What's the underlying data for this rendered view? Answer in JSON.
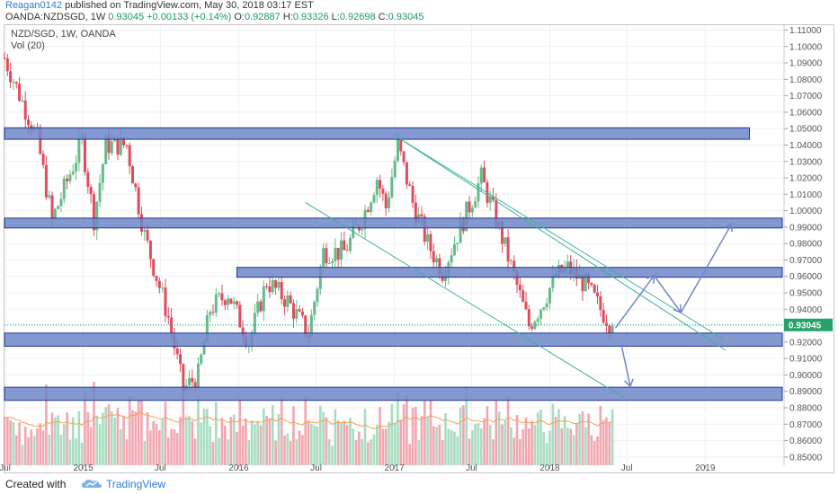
{
  "header": {
    "author": "Reagan0142",
    "published_text": " published on TradingView.com, May 30, 2018 03:17 EST",
    "symbol_line": "OANDA:NZDSGD, 1W",
    "last": "0.93045",
    "change": "+0.00133 (+0.14%)",
    "o_label": "O:",
    "o_value": "0.92887",
    "h_label": "H:",
    "h_value": "0.93326",
    "l_label": "L:",
    "l_value": "0.92698",
    "c_label": "C:",
    "c_value": "0.93045"
  },
  "legend": {
    "title": "NZD/SGD, 1W, OANDA",
    "vol": "Vol (20)"
  },
  "footer": {
    "created_with": "Created with",
    "brand": "TradingView"
  },
  "colors": {
    "up": "#66bb88",
    "down": "#e04c5f",
    "vol_up": "#a8dcc0",
    "vol_down": "#f2a6b0",
    "zone_fill": "#6f86c9",
    "zone_stroke": "#1e3a8a",
    "channel": "#3fb39a",
    "arrow": "#6f86c9",
    "price_tag": "#26a269",
    "vol_ma": "#f2a25a"
  },
  "chart_data": {
    "type": "candlestick",
    "title": "NZD/SGD, 1W, OANDA",
    "y_axis": {
      "ticks": [
        "1.11000",
        "1.10000",
        "1.09000",
        "1.08000",
        "1.07000",
        "1.06000",
        "1.05000",
        "1.04000",
        "1.03000",
        "1.02000",
        "1.01000",
        "1.00000",
        "0.99000",
        "0.98000",
        "0.97000",
        "0.96000",
        "0.95000",
        "0.94000",
        "0.93000",
        "0.92000",
        "0.91000",
        "0.90000",
        "0.89000",
        "0.88000",
        "0.87000",
        "0.86000",
        "0.85000"
      ],
      "range": [
        0.845,
        1.113
      ]
    },
    "x_axis": {
      "ticks": [
        "Jul",
        "2015",
        "Jul",
        "2016",
        "Jul",
        "2017",
        "Jul",
        "2018",
        "Jul",
        "2019"
      ],
      "tick_dates": [
        "2014-07-01",
        "2015-01-01",
        "2015-07-01",
        "2016-01-01",
        "2016-07-01",
        "2017-01-01",
        "2017-07-01",
        "2018-01-01",
        "2018-07-01",
        "2019-01-01"
      ],
      "range": [
        "2014-06-30",
        "2019-07-01"
      ]
    },
    "current_price_label": "0.93045",
    "current_price": 0.93045,
    "zones": [
      {
        "from": "2014-06-30",
        "to": "2019-04-15",
        "low": 1.0435,
        "high": 1.0505
      },
      {
        "from": "2014-06-30",
        "to": "2019-07-01",
        "low": 0.9895,
        "high": 0.9955
      },
      {
        "from": "2015-12-28",
        "to": "2019-07-01",
        "low": 0.9595,
        "high": 0.9655
      },
      {
        "from": "2014-06-30",
        "to": "2019-07-01",
        "low": 0.9175,
        "high": 0.9255
      },
      {
        "from": "2014-06-30",
        "to": "2019-07-01",
        "low": 0.8845,
        "high": 0.8925
      }
    ],
    "channel_lines": [
      {
        "x1": "2017-01-01",
        "y1": 1.046,
        "x2": "2019-02-11",
        "y2": 0.922
      },
      {
        "x1": "2016-06-06",
        "y1": 1.005,
        "x2": "2018-06-25",
        "y2": 0.886
      },
      {
        "x1": "2017-01-01",
        "y1": 1.046,
        "x2": "2019-02-18",
        "y2": 0.915
      }
    ],
    "arrows": [
      {
        "points": [
          [
            "2018-06-04",
            0.9285
          ],
          [
            "2018-09-03",
            0.9605
          ],
          [
            "2018-11-05",
            0.938
          ],
          [
            "2019-03-04",
            0.992
          ]
        ]
      },
      {
        "points": [
          [
            "2018-06-18",
            0.9185
          ],
          [
            "2018-07-09",
            0.893
          ]
        ]
      }
    ],
    "anchors": [
      {
        "date": "2014-06-30",
        "close": 1.093
      },
      {
        "date": "2014-09-15",
        "close": 1.044
      },
      {
        "date": "2014-10-20",
        "close": 0.994
      },
      {
        "date": "2014-12-29",
        "close": 1.042
      },
      {
        "date": "2015-01-26",
        "close": 0.995
      },
      {
        "date": "2015-02-23",
        "close": 1.04
      },
      {
        "date": "2015-04-13",
        "close": 1.04
      },
      {
        "date": "2015-05-25",
        "close": 0.985
      },
      {
        "date": "2015-07-20",
        "close": 0.935
      },
      {
        "date": "2015-08-24",
        "close": 0.891
      },
      {
        "date": "2015-09-28",
        "close": 0.9
      },
      {
        "date": "2015-10-26",
        "close": 0.94
      },
      {
        "date": "2015-12-07",
        "close": 0.95
      },
      {
        "date": "2016-01-25",
        "close": 0.92
      },
      {
        "date": "2016-03-07",
        "close": 0.957
      },
      {
        "date": "2016-04-25",
        "close": 0.945
      },
      {
        "date": "2016-06-13",
        "close": 0.925
      },
      {
        "date": "2016-07-18",
        "close": 0.975
      },
      {
        "date": "2016-09-05",
        "close": 0.975
      },
      {
        "date": "2016-10-17",
        "close": 0.995
      },
      {
        "date": "2016-11-21",
        "close": 1.02
      },
      {
        "date": "2016-12-12",
        "close": 1.002
      },
      {
        "date": "2017-01-09",
        "close": 1.04
      },
      {
        "date": "2017-02-13",
        "close": 1.005
      },
      {
        "date": "2017-03-20",
        "close": 0.98
      },
      {
        "date": "2017-04-24",
        "close": 0.963
      },
      {
        "date": "2017-06-05",
        "close": 0.99
      },
      {
        "date": "2017-07-24",
        "close": 1.02
      },
      {
        "date": "2017-08-28",
        "close": 0.995
      },
      {
        "date": "2017-10-09",
        "close": 0.96
      },
      {
        "date": "2017-11-13",
        "close": 0.93
      },
      {
        "date": "2017-12-11",
        "close": 0.942
      },
      {
        "date": "2018-01-15",
        "close": 0.96
      },
      {
        "date": "2018-02-12",
        "close": 0.965
      },
      {
        "date": "2018-03-26",
        "close": 0.955
      },
      {
        "date": "2018-04-30",
        "close": 0.94
      },
      {
        "date": "2018-05-28",
        "close": 0.93
      }
    ]
  }
}
